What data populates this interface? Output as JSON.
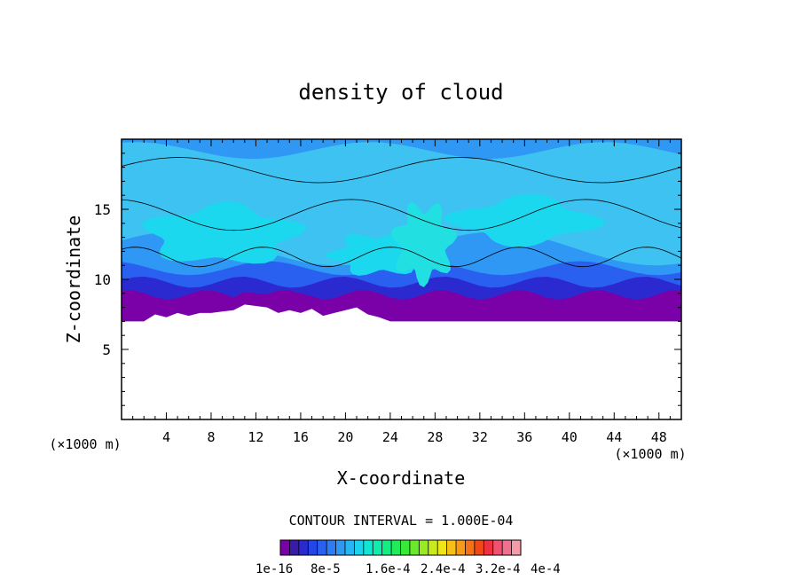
{
  "chart_data": {
    "type": "heatmap",
    "title": "density of cloud",
    "xlabel": "X-coordinate",
    "ylabel": "Z-coordinate",
    "x_unit": "(×1000 m)",
    "y_unit": "(×1000 m)",
    "xlim": [
      0,
      50
    ],
    "ylim": [
      0,
      20
    ],
    "x_ticks": [
      4,
      8,
      12,
      16,
      20,
      24,
      28,
      32,
      36,
      40,
      44,
      48
    ],
    "y_ticks": [
      5,
      10,
      15
    ],
    "contour_interval_label": "CONTOUR INTERVAL = 1.000E-04",
    "colorbar": {
      "colors": [
        "#7a00a8",
        "#3a1aa8",
        "#2a2ad0",
        "#2246e8",
        "#2a60f0",
        "#2e7cf4",
        "#2e98f4",
        "#26b6f2",
        "#1cd2ee",
        "#10e6d2",
        "#10ecae",
        "#12ee84",
        "#20ec5a",
        "#3ae83a",
        "#66ea2a",
        "#98ea22",
        "#c8ea1c",
        "#eee618",
        "#f6c018",
        "#f69a18",
        "#f67018",
        "#f24818",
        "#ee3040",
        "#f25070",
        "#f07090",
        "#f49aa8"
      ],
      "tick_labels": [
        "1e-16",
        "8e-5",
        "1.6e-4",
        "2.4e-4",
        "3.2e-4",
        "4e-4"
      ]
    },
    "cloud_profile": {
      "base_x": [
        0,
        1,
        2,
        3,
        4,
        5,
        6,
        7,
        8,
        9,
        10,
        11,
        12,
        13,
        14,
        15,
        16,
        17,
        18,
        19,
        20,
        21,
        22,
        23,
        24,
        25,
        26,
        27,
        28,
        29,
        30,
        31,
        32,
        33,
        34,
        35,
        36,
        37,
        38,
        39,
        40,
        41,
        42,
        43,
        44,
        45,
        46,
        47,
        48,
        49,
        50
      ],
      "base_z": [
        7.0,
        7.0,
        7.0,
        7.5,
        7.3,
        7.6,
        7.4,
        7.6,
        7.6,
        7.7,
        7.8,
        8.2,
        8.1,
        8.0,
        7.6,
        7.8,
        7.6,
        7.9,
        7.4,
        7.6,
        7.8,
        8.0,
        7.5,
        7.3,
        7.0,
        7.0,
        7.0,
        7.0,
        7.0,
        7.0,
        7.0,
        7.0,
        7.0,
        7.0,
        7.0,
        7.0,
        7.0,
        7.0,
        7.0,
        7.0,
        7.0,
        7.0,
        7.0,
        7.0,
        7.0,
        7.0,
        7.0,
        7.0,
        7.0,
        7.0,
        7.0
      ],
      "top_z": 20
    }
  }
}
